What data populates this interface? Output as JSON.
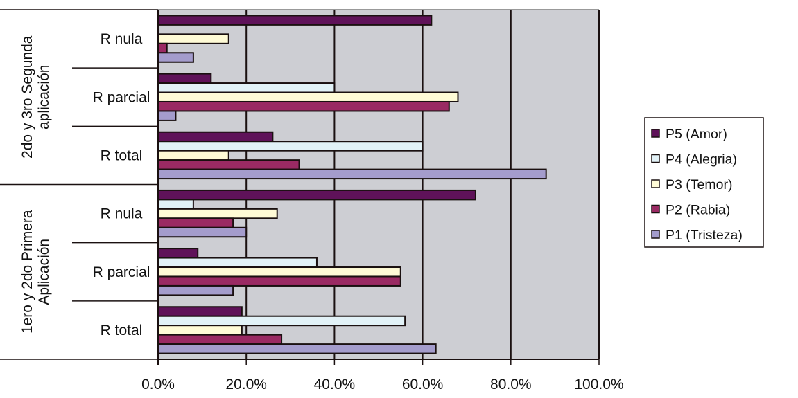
{
  "chart_data": {
    "type": "bar",
    "orientation": "horizontal",
    "xlim": [
      0,
      100
    ],
    "x_ticks": [
      "0.0%",
      "20.0%",
      "40.0%",
      "60.0%",
      "80.0%",
      "100.0%"
    ],
    "grid": true,
    "legend_position": "right",
    "groups": [
      {
        "label": "2do y 3ro Segunda aplicación",
        "categories": [
          "R nula",
          "R parcial",
          "R total"
        ]
      },
      {
        "label": "1ero y 2do Primera Aplicación",
        "categories": [
          "R nula",
          "R parcial",
          "R total"
        ]
      }
    ],
    "series": [
      {
        "name": "P5 (Amor)",
        "color": "#5f1259",
        "values": [
          62,
          12,
          26,
          72,
          9,
          19
        ]
      },
      {
        "name": "P4 (Alegria)",
        "color": "#e2f2f7",
        "values": [
          0,
          40,
          60,
          8,
          36,
          56
        ]
      },
      {
        "name": "P3 (Temor)",
        "color": "#fffbd6",
        "values": [
          16,
          68,
          16,
          27,
          55,
          19
        ]
      },
      {
        "name": "P2 (Rabia)",
        "color": "#9a2a63",
        "values": [
          2,
          66,
          32,
          17,
          55,
          28
        ]
      },
      {
        "name": "P1 (Tristeza)",
        "color": "#a49ccc",
        "values": [
          8,
          4,
          88,
          20,
          17,
          63
        ]
      }
    ],
    "plot_background": "#cdced3"
  }
}
